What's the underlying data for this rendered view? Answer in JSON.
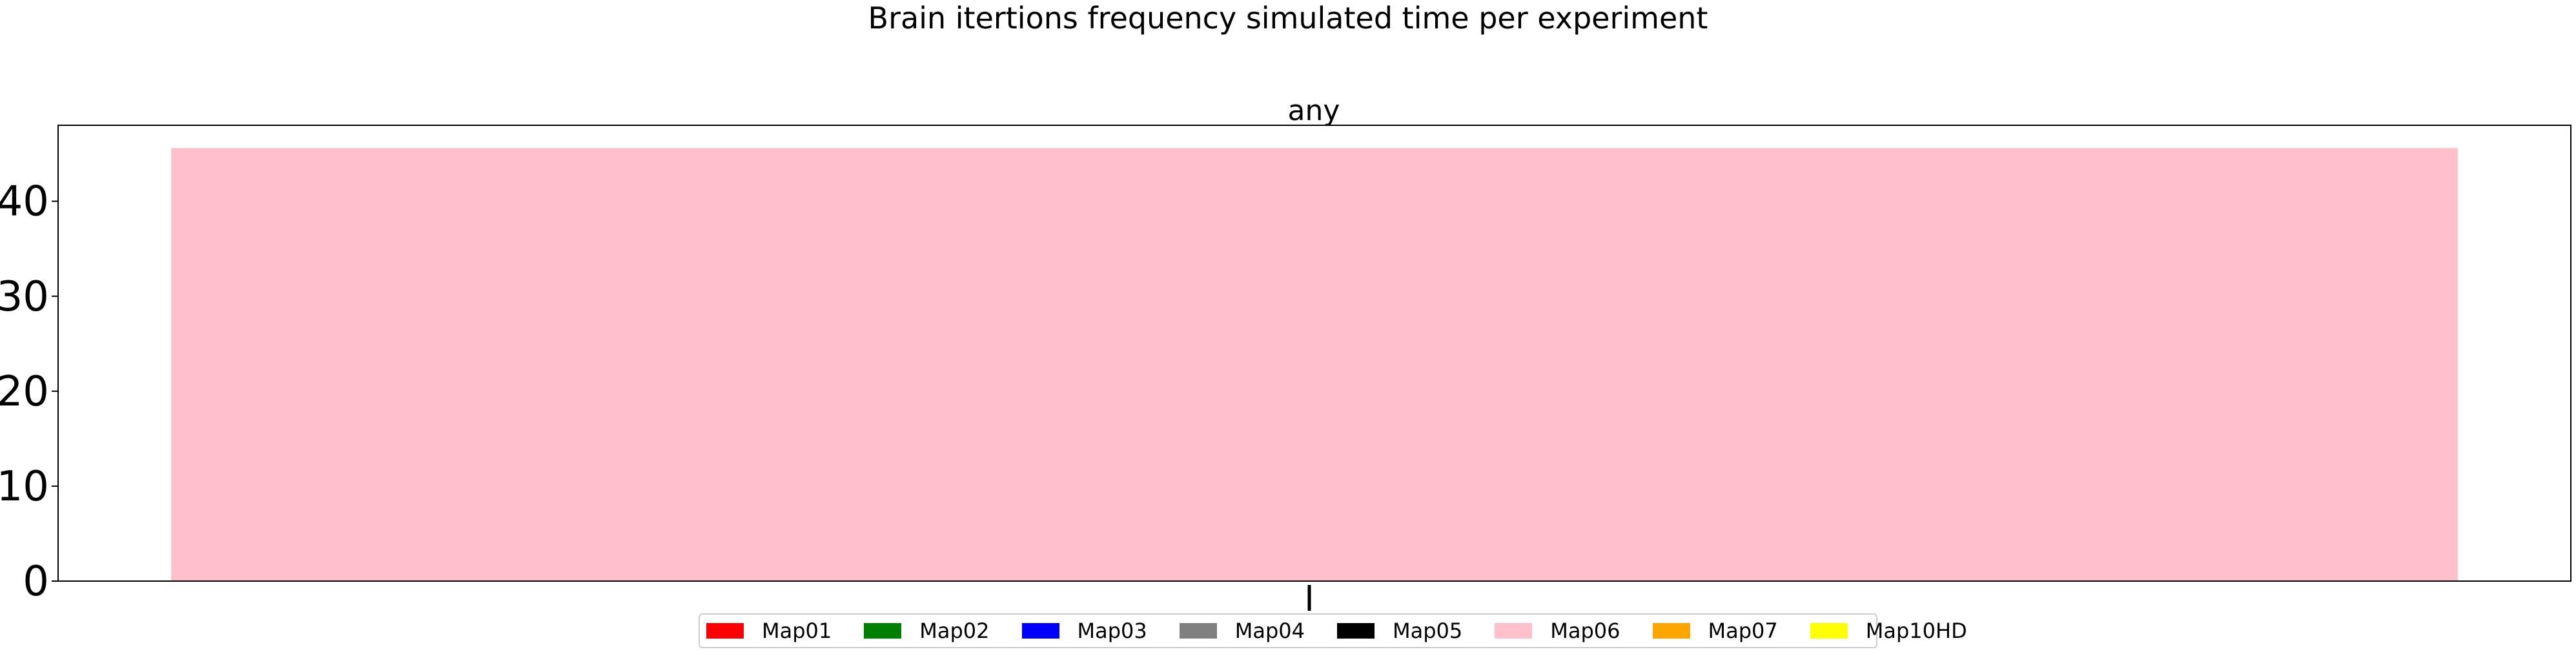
{
  "chart_data": {
    "type": "bar",
    "title": "Brain itertions frequency simulated time per experiment",
    "subplot_title": "any",
    "categories": [
      "any"
    ],
    "series": [
      {
        "name": "Map01",
        "color": "#ff0000",
        "values": [
          0
        ]
      },
      {
        "name": "Map02",
        "color": "#008000",
        "values": [
          0
        ]
      },
      {
        "name": "Map03",
        "color": "#0000ff",
        "values": [
          0
        ]
      },
      {
        "name": "Map04",
        "color": "#808080",
        "values": [
          0
        ]
      },
      {
        "name": "Map05",
        "color": "#000000",
        "values": [
          0
        ]
      },
      {
        "name": "Map06",
        "color": "#ffc0cb",
        "values": [
          45.6
        ]
      },
      {
        "name": "Map07",
        "color": "#ffa500",
        "values": [
          0
        ]
      },
      {
        "name": "Map10HD",
        "color": "#ffff00",
        "values": [
          0
        ]
      }
    ],
    "xlabel": "",
    "ylabel": "",
    "ylim": [
      0,
      48
    ],
    "yticks": [
      0,
      10,
      20,
      30,
      40
    ],
    "grid": false,
    "legend_position": "bottom-center"
  }
}
